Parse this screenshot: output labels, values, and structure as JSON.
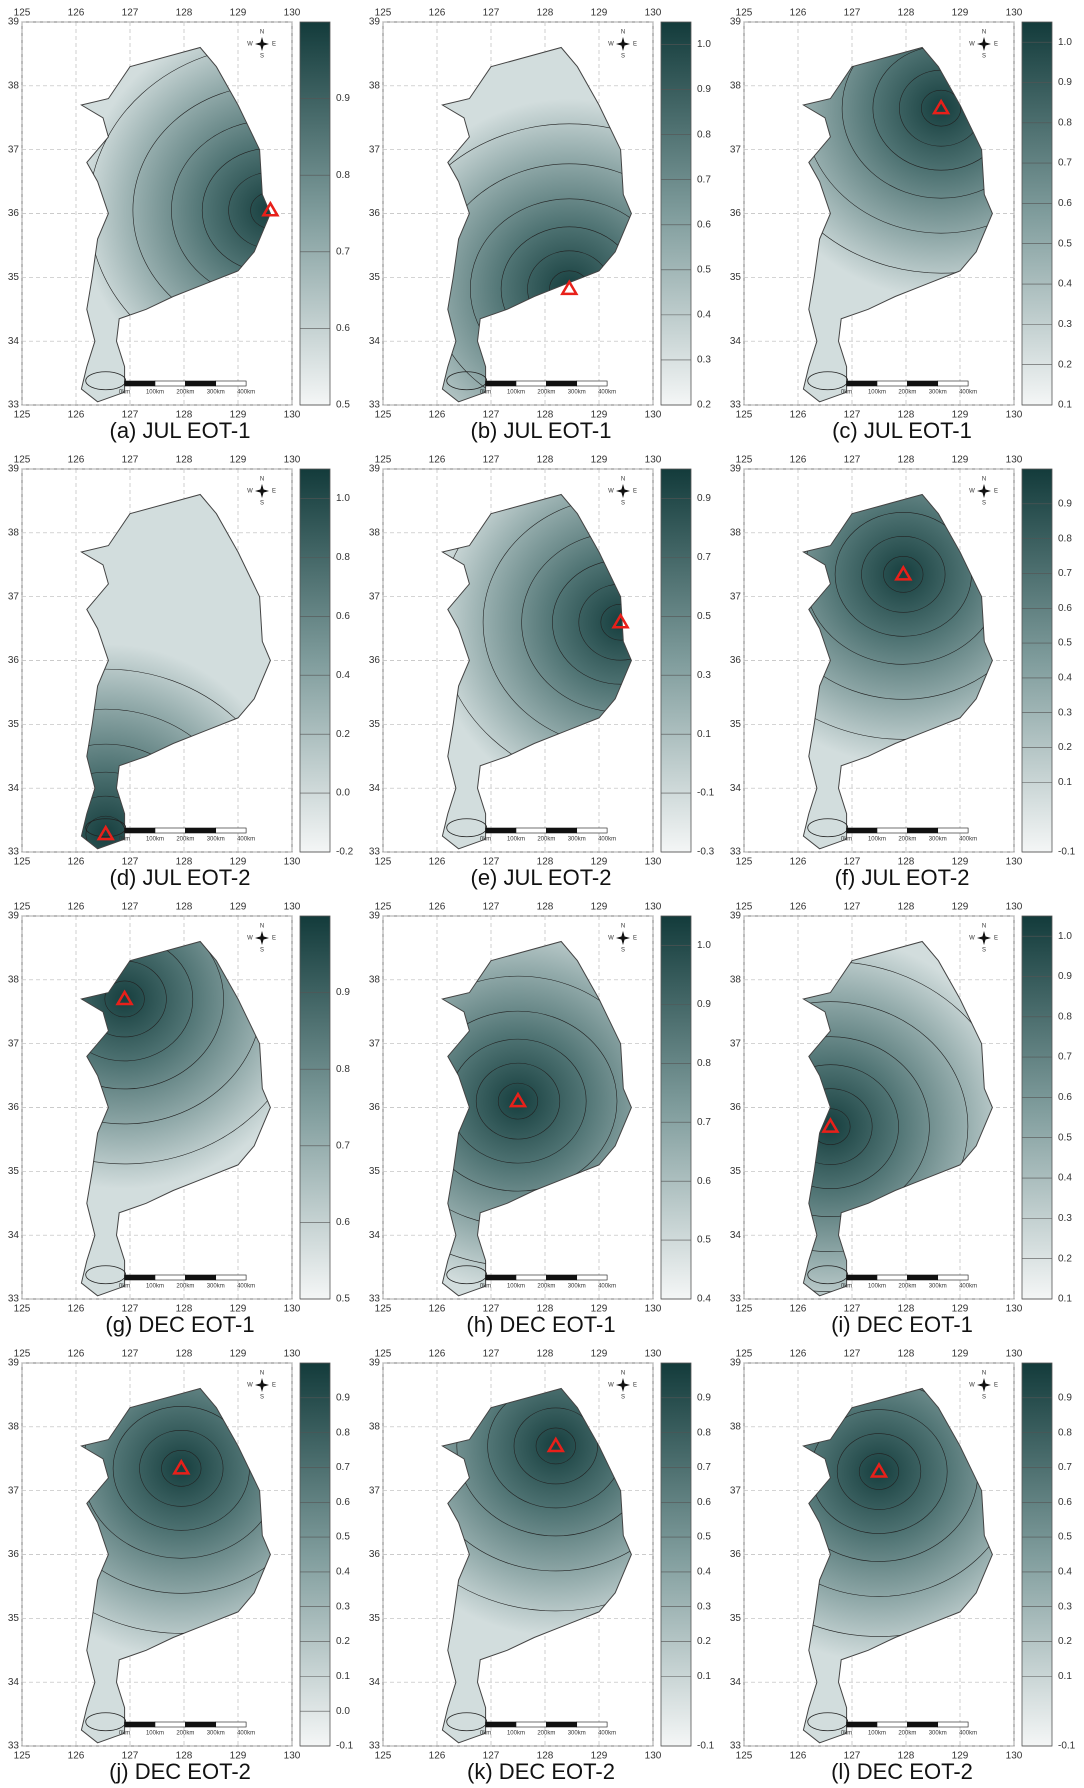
{
  "maps": {
    "xlim": [
      125,
      130
    ],
    "ylim": [
      33,
      39
    ],
    "xticks": [
      125,
      126,
      127,
      128,
      129,
      130
    ],
    "yticks": [
      33,
      34,
      35,
      36,
      37,
      38,
      39
    ],
    "compass": {
      "n": "N",
      "s": "S",
      "w": "W",
      "e": "E"
    },
    "scale_bar": [
      "0km",
      "100km",
      "200km",
      "300km",
      "400km"
    ],
    "panels": [
      {
        "caption": "(a) JUL EOT-1",
        "clim": [
          0.5,
          1.0
        ],
        "cticks": [
          0.5,
          0.6,
          0.7,
          0.8,
          0.9
        ],
        "marker": [
          129.6,
          36.05
        ]
      },
      {
        "caption": "(b) JUL EOT-1",
        "clim": [
          0.2,
          1.05
        ],
        "cticks": [
          0.2,
          0.3,
          0.4,
          0.5,
          0.6,
          0.7,
          0.8,
          0.9,
          {
            "value": 1,
            "label": "1.0"
          }
        ],
        "marker": [
          128.45,
          34.82
        ]
      },
      {
        "caption": "(c) JUL EOT-1",
        "clim": [
          0.1,
          1.05
        ],
        "cticks": [
          0.1,
          0.2,
          0.3,
          0.4,
          0.5,
          0.6,
          0.7,
          0.8,
          0.9,
          {
            "value": 1,
            "label": "1.0"
          }
        ],
        "marker": [
          128.65,
          37.65
        ]
      },
      {
        "caption": "(d) JUL EOT-2",
        "clim": [
          -0.2,
          1.1
        ],
        "cticks": [
          -0.2,
          {
            "value": 0,
            "label": "0.0"
          },
          0.2,
          0.4,
          0.6,
          0.8,
          {
            "value": 1,
            "label": "1.0"
          }
        ],
        "marker": [
          126.55,
          33.28
        ]
      },
      {
        "caption": "(e) JUL EOT-2",
        "clim": [
          -0.3,
          1.0
        ],
        "cticks": [
          -0.3,
          -0.1,
          0.1,
          0.3,
          0.5,
          0.7,
          0.9
        ],
        "marker": [
          129.4,
          36.6
        ]
      },
      {
        "caption": "(f) JUL EOT-2",
        "clim": [
          -0.1,
          1.0
        ],
        "cticks": [
          -0.1,
          0.1,
          0.2,
          0.3,
          0.4,
          0.5,
          0.6,
          0.7,
          0.8,
          0.9
        ],
        "marker": [
          127.95,
          37.35
        ]
      },
      {
        "caption": "(g) DEC EOT-1",
        "clim": [
          0.5,
          1.0
        ],
        "cticks": [
          0.5,
          0.6,
          0.7,
          0.8,
          0.9
        ],
        "marker": [
          126.9,
          37.7
        ]
      },
      {
        "caption": "(h) DEC EOT-1",
        "clim": [
          0.4,
          1.05
        ],
        "cticks": [
          0.4,
          0.5,
          0.6,
          0.7,
          0.8,
          0.9,
          {
            "value": 1,
            "label": "1.0"
          }
        ],
        "marker": [
          127.5,
          36.1
        ]
      },
      {
        "caption": "(i) DEC EOT-1",
        "clim": [
          0.1,
          1.05
        ],
        "cticks": [
          0.1,
          0.2,
          0.3,
          0.4,
          0.5,
          0.6,
          0.7,
          0.8,
          0.9,
          {
            "value": 1,
            "label": "1.0"
          }
        ],
        "marker": [
          126.6,
          35.7
        ]
      },
      {
        "caption": "(j) DEC EOT-2",
        "clim": [
          -0.1,
          1.0
        ],
        "cticks": [
          -0.1,
          {
            "value": 0,
            "label": "0.0"
          },
          0.1,
          0.2,
          0.3,
          0.4,
          0.5,
          0.6,
          0.7,
          0.8,
          0.9
        ],
        "marker": [
          127.95,
          37.35
        ]
      },
      {
        "caption": "(k) DEC EOT-2",
        "clim": [
          -0.1,
          1.0
        ],
        "cticks": [
          -0.1,
          0.1,
          0.2,
          0.3,
          0.4,
          0.5,
          0.6,
          0.7,
          0.8,
          0.9
        ],
        "marker": [
          128.2,
          37.7
        ]
      },
      {
        "caption": "(l) DEC EOT-2",
        "clim": [
          -0.1,
          1.0
        ],
        "cticks": [
          -0.1,
          0.1,
          0.2,
          0.3,
          0.4,
          0.5,
          0.6,
          0.7,
          0.8,
          0.9
        ],
        "marker": [
          127.5,
          37.3
        ]
      }
    ]
  }
}
